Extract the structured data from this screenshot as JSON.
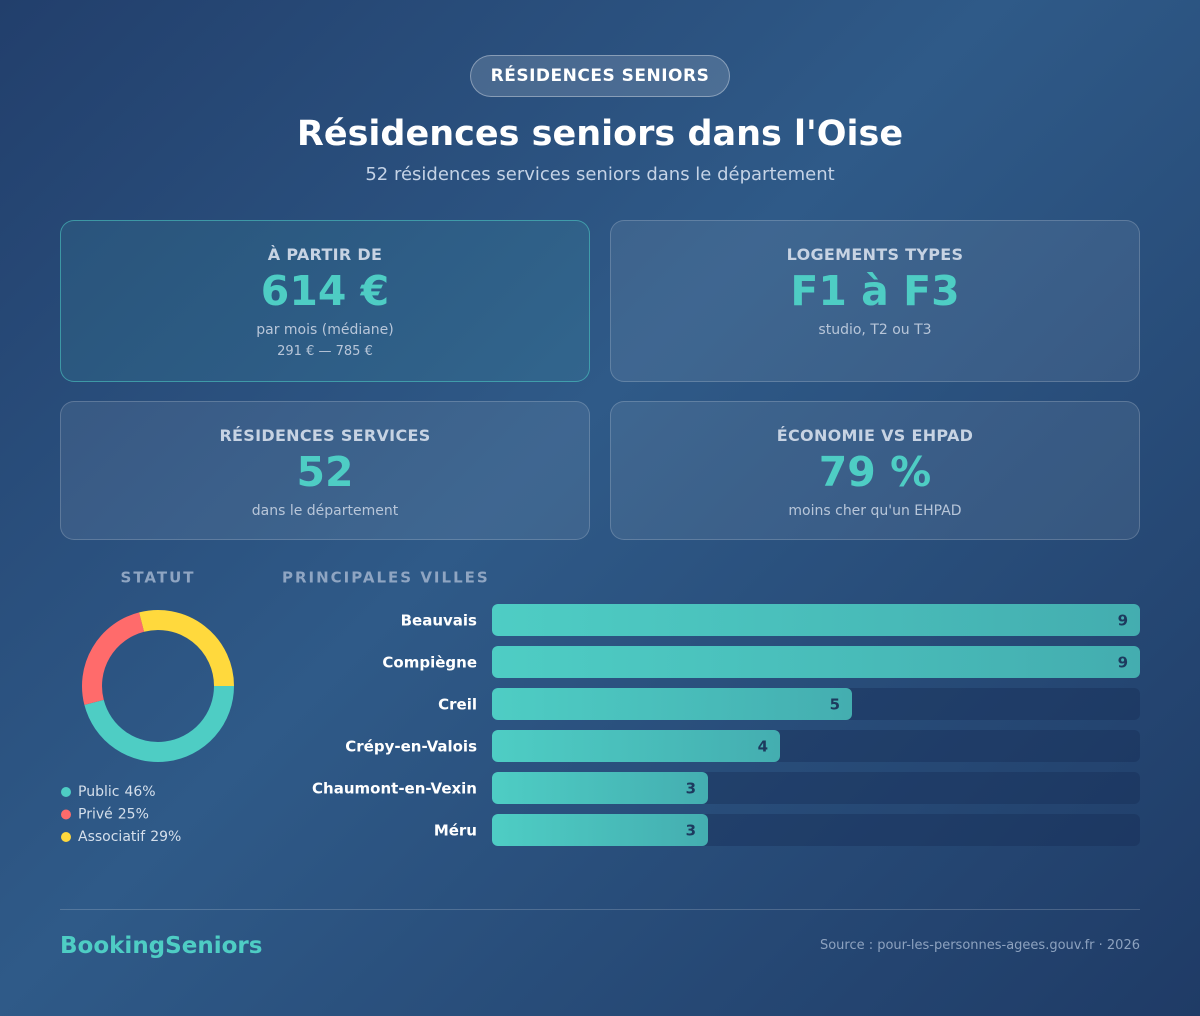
{
  "header": {
    "badge": "RÉSIDENCES SENIORS",
    "title": "Résidences seniors dans l'Oise",
    "subtitle": "52 résidences services seniors dans le département"
  },
  "cards": [
    {
      "label": "À PARTIR DE",
      "value": "614 €",
      "note": "par mois (médiane)",
      "range": "291 € — 785 €"
    },
    {
      "label": "LOGEMENTS TYPES",
      "value": "F1 à F3",
      "note": "studio, T2 ou T3"
    },
    {
      "label": "RÉSIDENCES SERVICES",
      "value": "52",
      "note": "dans le département"
    },
    {
      "label": "ÉCONOMIE VS EHPAD",
      "value": "79 %",
      "note": "moins cher qu'un EHPAD"
    }
  ],
  "chart_data": [
    {
      "type": "donut",
      "title": "STATUT",
      "categories": [
        "Public",
        "Privé",
        "Associatif"
      ],
      "values": [
        46,
        25,
        29
      ],
      "value_labels": [
        "46%",
        "25%",
        "29%"
      ],
      "colors": [
        "#4ecdc4",
        "#ff6b6b",
        "#ffd93d"
      ]
    },
    {
      "type": "hbar",
      "title": "PRINCIPALES VILLES",
      "categories": [
        "Beauvais",
        "Compiègne",
        "Creil",
        "Crépy-en-Valois",
        "Chaumont-en-Vexin",
        "Méru"
      ],
      "values": [
        9,
        9,
        5,
        4,
        3,
        3
      ],
      "xlim": [
        0,
        9
      ],
      "color": "#4ecdc4"
    }
  ],
  "footer": {
    "brand": "BookingSeniors",
    "source": "Source : pour-les-personnes-agees.gouv.fr · 2026"
  }
}
